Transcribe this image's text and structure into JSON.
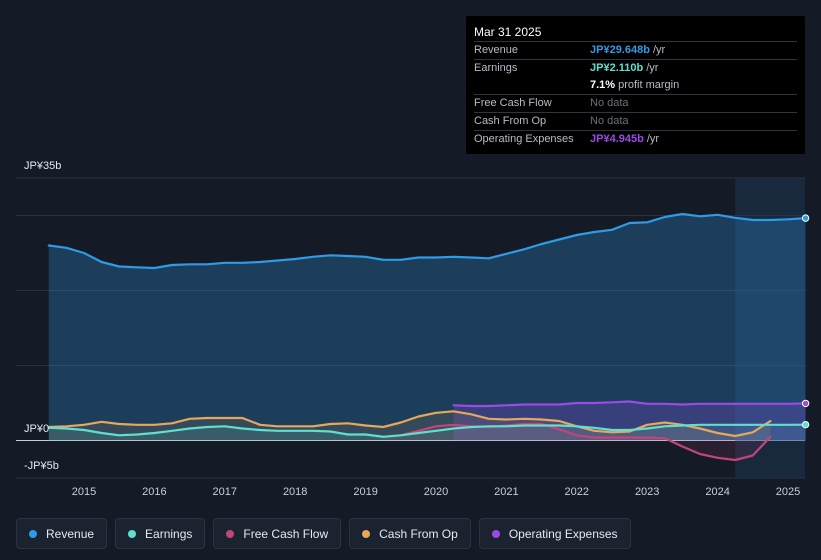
{
  "colors": {
    "background": "#151b26",
    "revenue": "#2e9be6",
    "earnings": "#5fe0cf",
    "free_cash_flow": "#c2457a",
    "cash_from_op": "#e6a85a",
    "operating_expenses": "#9b4ae8"
  },
  "tooltip": {
    "date": "Mar 31 2025",
    "rows": [
      {
        "key": "Revenue",
        "value": "JP¥29.648b",
        "unit": "/yr"
      },
      {
        "key": "Earnings",
        "value": "JP¥2.110b",
        "unit": "/yr"
      },
      {
        "key": "",
        "value": "7.1%",
        "unit": "profit margin"
      },
      {
        "key": "Free Cash Flow",
        "value": "No data",
        "unit": ""
      },
      {
        "key": "Cash From Op",
        "value": "No data",
        "unit": ""
      },
      {
        "key": "Operating Expenses",
        "value": "JP¥4.945b",
        "unit": "/yr"
      }
    ]
  },
  "legend": [
    {
      "label": "Revenue",
      "color": "#2e9be6"
    },
    {
      "label": "Earnings",
      "color": "#5fe0cf"
    },
    {
      "label": "Free Cash Flow",
      "color": "#c2457a"
    },
    {
      "label": "Cash From Op",
      "color": "#e6a85a"
    },
    {
      "label": "Operating Expenses",
      "color": "#9b4ae8"
    }
  ],
  "chart_data": {
    "type": "area",
    "title": "",
    "xlabel": "",
    "ylabel": "",
    "ylim": [
      -5,
      35
    ],
    "y_tick_labels": [
      "JP¥35b",
      "JP¥0",
      "-JP¥5b"
    ],
    "x_tick_labels": [
      "2015",
      "2016",
      "2017",
      "2018",
      "2019",
      "2020",
      "2021",
      "2022",
      "2023",
      "2024",
      "2025"
    ],
    "x_ticks": [
      2015,
      2016,
      2017,
      2018,
      2019,
      2020,
      2021,
      2022,
      2023,
      2024,
      2025
    ],
    "xlim": [
      2014.35,
      2025.25
    ],
    "forecast_shade_start": 2024.25,
    "series": [
      {
        "name": "Revenue",
        "color": "#2e9be6",
        "x": [
          2014.5,
          2014.75,
          2015.0,
          2015.25,
          2015.5,
          2015.75,
          2016.0,
          2016.25,
          2016.5,
          2016.75,
          2017.0,
          2017.25,
          2017.5,
          2017.75,
          2018.0,
          2018.25,
          2018.5,
          2018.75,
          2019.0,
          2019.25,
          2019.5,
          2019.75,
          2020.0,
          2020.25,
          2020.5,
          2020.75,
          2021.0,
          2021.25,
          2021.5,
          2021.75,
          2022.0,
          2022.25,
          2022.5,
          2022.75,
          2023.0,
          2023.25,
          2023.5,
          2023.75,
          2024.0,
          2024.25,
          2024.5,
          2024.75,
          2025.0,
          2025.25
        ],
        "values": [
          26.0,
          25.7,
          25.0,
          23.8,
          23.2,
          23.1,
          23.0,
          23.4,
          23.5,
          23.5,
          23.7,
          23.7,
          23.8,
          24.0,
          24.2,
          24.5,
          24.7,
          24.6,
          24.5,
          24.1,
          24.1,
          24.4,
          24.4,
          24.5,
          24.4,
          24.3,
          24.9,
          25.5,
          26.2,
          26.8,
          27.4,
          27.8,
          28.1,
          29.0,
          29.1,
          29.8,
          30.2,
          29.9,
          30.1,
          29.7,
          29.4,
          29.4,
          29.5,
          29.65
        ]
      },
      {
        "name": "Earnings",
        "color": "#5fe0cf",
        "x": [
          2014.5,
          2014.75,
          2015.0,
          2015.25,
          2015.5,
          2015.75,
          2016.0,
          2016.25,
          2016.5,
          2016.75,
          2017.0,
          2017.25,
          2017.5,
          2017.75,
          2018.0,
          2018.25,
          2018.5,
          2018.75,
          2019.0,
          2019.25,
          2019.5,
          2019.75,
          2020.0,
          2020.25,
          2020.5,
          2020.75,
          2021.0,
          2021.25,
          2021.5,
          2021.75,
          2022.0,
          2022.25,
          2022.5,
          2022.75,
          2023.0,
          2023.25,
          2023.5,
          2023.75,
          2024.0,
          2024.25,
          2024.5,
          2024.75,
          2025.0,
          2025.25
        ],
        "values": [
          1.7,
          1.6,
          1.4,
          1.0,
          0.7,
          0.8,
          1.0,
          1.3,
          1.6,
          1.8,
          1.9,
          1.6,
          1.4,
          1.3,
          1.3,
          1.3,
          1.2,
          0.8,
          0.8,
          0.5,
          0.7,
          1.0,
          1.3,
          1.6,
          1.8,
          1.9,
          1.9,
          2.0,
          2.0,
          2.0,
          1.9,
          1.7,
          1.4,
          1.4,
          1.6,
          1.9,
          2.0,
          2.1,
          2.1,
          2.1,
          2.1,
          2.1,
          2.1,
          2.11
        ]
      },
      {
        "name": "Free Cash Flow",
        "color": "#c2457a",
        "x": [
          2019.25,
          2019.5,
          2019.75,
          2020.0,
          2020.25,
          2020.5,
          2020.75,
          2021.0,
          2021.25,
          2021.5,
          2021.75,
          2022.0,
          2022.25,
          2022.5,
          2022.75,
          2023.0,
          2023.25,
          2023.5,
          2023.75,
          2024.0,
          2024.25,
          2024.5,
          2024.75
        ],
        "values": [
          0.5,
          0.7,
          1.3,
          1.9,
          2.1,
          1.9,
          1.8,
          2.0,
          2.2,
          2.2,
          1.5,
          0.7,
          0.4,
          0.4,
          0.4,
          0.4,
          0.3,
          -0.8,
          -1.8,
          -2.3,
          -2.6,
          -2.0,
          0.5
        ]
      },
      {
        "name": "Cash From Op",
        "color": "#e6a85a",
        "x": [
          2014.5,
          2014.75,
          2015.0,
          2015.25,
          2015.5,
          2015.75,
          2016.0,
          2016.25,
          2016.5,
          2016.75,
          2017.0,
          2017.25,
          2017.5,
          2017.75,
          2018.0,
          2018.25,
          2018.5,
          2018.75,
          2019.0,
          2019.25,
          2019.5,
          2019.75,
          2020.0,
          2020.25,
          2020.5,
          2020.75,
          2021.0,
          2021.25,
          2021.5,
          2021.75,
          2022.0,
          2022.25,
          2022.5,
          2022.75,
          2023.0,
          2023.25,
          2023.5,
          2023.75,
          2024.0,
          2024.25,
          2024.5,
          2024.75
        ],
        "values": [
          1.8,
          1.9,
          2.1,
          2.5,
          2.2,
          2.1,
          2.1,
          2.3,
          2.9,
          3.0,
          3.0,
          3.0,
          2.1,
          1.9,
          1.9,
          1.9,
          2.2,
          2.3,
          2.0,
          1.8,
          2.4,
          3.2,
          3.7,
          3.9,
          3.5,
          2.9,
          2.8,
          2.9,
          2.8,
          2.6,
          1.9,
          1.3,
          1.1,
          1.2,
          2.1,
          2.4,
          2.1,
          1.6,
          1.0,
          0.6,
          1.1,
          2.6
        ]
      },
      {
        "name": "Operating Expenses",
        "color": "#9b4ae8",
        "x": [
          2020.25,
          2020.5,
          2020.75,
          2021.0,
          2021.25,
          2021.5,
          2021.75,
          2022.0,
          2022.25,
          2022.5,
          2022.75,
          2023.0,
          2023.25,
          2023.5,
          2023.75,
          2024.0,
          2024.25,
          2024.5,
          2024.75,
          2025.0,
          2025.25
        ],
        "values": [
          4.7,
          4.6,
          4.6,
          4.7,
          4.8,
          4.8,
          4.8,
          5.0,
          5.0,
          5.1,
          5.2,
          4.9,
          4.9,
          4.8,
          4.9,
          4.9,
          4.9,
          4.9,
          4.9,
          4.9,
          4.945
        ]
      }
    ]
  }
}
